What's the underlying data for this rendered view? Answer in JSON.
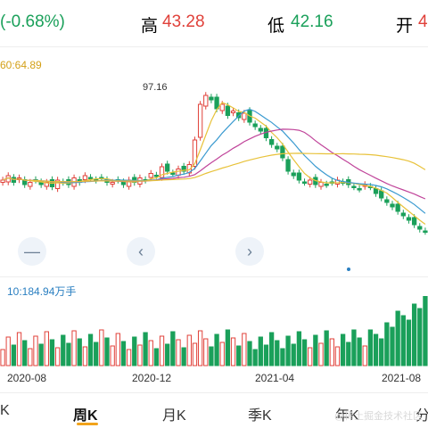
{
  "quote": {
    "change_pct": "(-0.68%)",
    "high_label": "高",
    "high_value": "43.28",
    "low_label": "低",
    "low_value": "42.16",
    "open_label": "开",
    "open_value_partial": "4"
  },
  "price_chart": {
    "ma_label": "60:64.89",
    "max_marker": "97.16"
  },
  "volume_chart": {
    "label": "10:184.94万手"
  },
  "x_axis": [
    "2020-08",
    "2020-12",
    "2021-04",
    "2021-08"
  ],
  "nav": {
    "minus_button": "—",
    "prev_button": "‹",
    "next_button": "›"
  },
  "tabs": [
    {
      "label": "K",
      "active": false
    },
    {
      "label": "周K",
      "active": true
    },
    {
      "label": "月K",
      "active": false
    },
    {
      "label": "季K",
      "active": false
    },
    {
      "label": "年K",
      "active": false
    },
    {
      "label": "分",
      "active": false
    }
  ],
  "watermark": "@稀土掘金技术社区",
  "colors": {
    "up": "#e0413a",
    "down": "#1aa05a",
    "ma_yellow": "#e8c23a",
    "ma_purple": "#c0449a",
    "ma_blue": "#3a9ad0",
    "accent": "#f2a31b"
  },
  "chart_data": {
    "type": "candlestick",
    "series": [
      {
        "name": "price_close",
        "values": [
          56,
          58,
          55,
          57,
          54,
          55,
          56,
          54,
          55,
          53,
          56,
          55,
          54,
          57,
          55,
          58,
          57,
          56,
          57,
          55,
          55,
          56,
          54,
          56,
          55,
          57,
          56,
          59,
          58,
          62,
          60,
          59,
          61,
          60,
          63,
          74,
          90,
          94,
          92,
          88,
          90,
          85,
          87,
          84,
          86,
          82,
          80,
          78,
          75,
          72,
          70,
          66,
          60,
          58,
          56,
          55,
          56,
          54,
          55,
          54,
          55,
          56,
          55,
          54,
          53,
          52,
          54,
          53,
          50,
          48,
          46,
          44,
          42,
          40,
          38,
          36,
          34,
          33
        ]
      }
    ]
  }
}
